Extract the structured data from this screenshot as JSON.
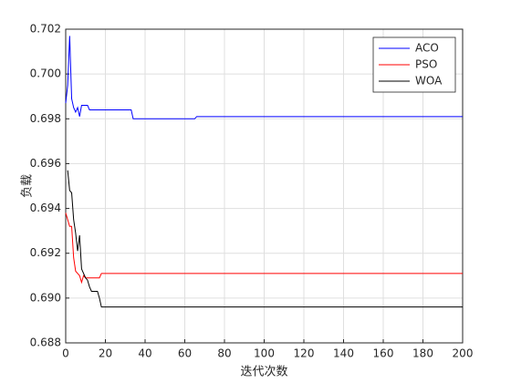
{
  "chart_data": {
    "type": "line",
    "xlabel": "迭代次数",
    "ylabel": "负载",
    "x": [
      0,
      1,
      2,
      3,
      4,
      5,
      6,
      7,
      8,
      9,
      10,
      11,
      12,
      13,
      16,
      17,
      18,
      33,
      34,
      65,
      66,
      200
    ],
    "series": [
      {
        "name": "ACO",
        "color": "#0000ff",
        "values": [
          0.6987,
          0.6995,
          0.7017,
          0.6989,
          0.6985,
          0.6983,
          0.6985,
          0.6981,
          0.6986,
          0.6986,
          0.6986,
          0.6986,
          0.6984,
          0.6984,
          0.6984,
          0.6984,
          0.6984,
          0.6984,
          0.698,
          0.698,
          0.6981,
          0.6981
        ]
      },
      {
        "name": "PSO",
        "color": "#ff0000",
        "values": [
          0.6938,
          0.6935,
          0.6932,
          0.6932,
          0.6918,
          0.6912,
          0.6911,
          0.691,
          0.6907,
          0.691,
          0.6909,
          0.6909,
          0.6909,
          0.6909,
          0.6909,
          0.6909,
          0.6911,
          0.6911,
          0.6911,
          0.6911,
          0.6911,
          0.6911
        ]
      },
      {
        "name": "WOA",
        "color": "#000000",
        "values": [
          null,
          0.6957,
          0.6948,
          0.6947,
          0.6935,
          0.6929,
          0.6921,
          0.6928,
          0.6913,
          0.6911,
          0.6909,
          0.6908,
          0.6905,
          0.6903,
          0.6903,
          0.69,
          0.6896,
          0.6896,
          0.6896,
          0.6896,
          0.6896,
          0.6896
        ]
      }
    ],
    "xlim": [
      0,
      200
    ],
    "xticks": [
      0,
      20,
      40,
      60,
      80,
      100,
      120,
      140,
      160,
      180,
      200
    ],
    "ylim": [
      0.688,
      0.702
    ],
    "yticks": [
      0.688,
      {
        "value": 0.69,
        "label": "0.690"
      },
      0.692,
      0.694,
      0.696,
      0.698,
      {
        "value": 0.7,
        "label": "0.700"
      },
      0.702
    ],
    "grid": true,
    "legend": "northeast"
  }
}
